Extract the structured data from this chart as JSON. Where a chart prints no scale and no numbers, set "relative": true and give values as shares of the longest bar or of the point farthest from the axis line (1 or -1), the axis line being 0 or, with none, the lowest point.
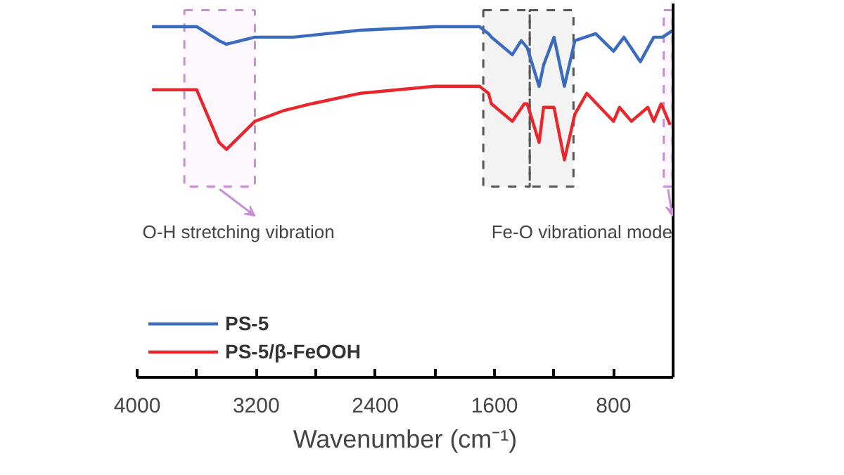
{
  "chart_data": {
    "type": "line",
    "relative": true,
    "xlabel": "Wavenumber (cm⁻¹)",
    "xlim": [
      4000,
      400
    ],
    "xticks": [
      4000,
      3200,
      2400,
      1600,
      800
    ],
    "series": [
      {
        "name": "PS-5",
        "color": "#3a6bbf",
        "x": [
          3900,
          3700,
          3600,
          3450,
          3400,
          3209,
          3050,
          2950,
          2500,
          2000,
          1700,
          1640,
          1620,
          1480,
          1420,
          1380,
          1300,
          1270,
          1200,
          1130,
          1060,
          920,
          800,
          730,
          620,
          530,
          470,
          400
        ],
        "values": [
          1,
          1,
          1,
          0.96,
          0.95,
          0.97,
          0.97,
          0.97,
          0.99,
          1.0,
          1.0,
          0.98,
          0.97,
          0.92,
          0.96,
          0.94,
          0.83,
          0.89,
          0.97,
          0.83,
          0.96,
          0.98,
          0.93,
          0.97,
          0.9,
          0.97,
          0.97,
          0.99
        ]
      },
      {
        "name": "PS-5/β-FeOOH",
        "color": "#e8262b",
        "x": [
          3900,
          3700,
          3600,
          3450,
          3400,
          3209,
          3020,
          2830,
          2500,
          2000,
          1700,
          1640,
          1620,
          1480,
          1400,
          1380,
          1300,
          1270,
          1200,
          1130,
          1060,
          980,
          800,
          760,
          680,
          570,
          530,
          480,
          420
        ],
        "values": [
          0.82,
          0.82,
          0.82,
          0.67,
          0.65,
          0.73,
          0.76,
          0.78,
          0.81,
          0.83,
          0.83,
          0.81,
          0.78,
          0.73,
          0.78,
          0.78,
          0.67,
          0.77,
          0.77,
          0.62,
          0.75,
          0.81,
          0.73,
          0.77,
          0.73,
          0.77,
          0.73,
          0.78,
          0.72
        ]
      }
    ],
    "bands": [
      {
        "axis": "x",
        "from": 3683,
        "to": 3209,
        "label": "O-H stretching vibration",
        "color": "#c98fd6"
      },
      {
        "axis": "x",
        "from": 1675,
        "to": 1363,
        "color": "#555555"
      },
      {
        "axis": "x",
        "from": 1363,
        "to": 1069,
        "color": "#555555"
      },
      {
        "axis": "x",
        "from": 463,
        "to": 405,
        "label": "Fe-O vibrational mode",
        "color": "#c98fd6"
      }
    ],
    "legend": "bottom left",
    "tick_labels": "x"
  }
}
